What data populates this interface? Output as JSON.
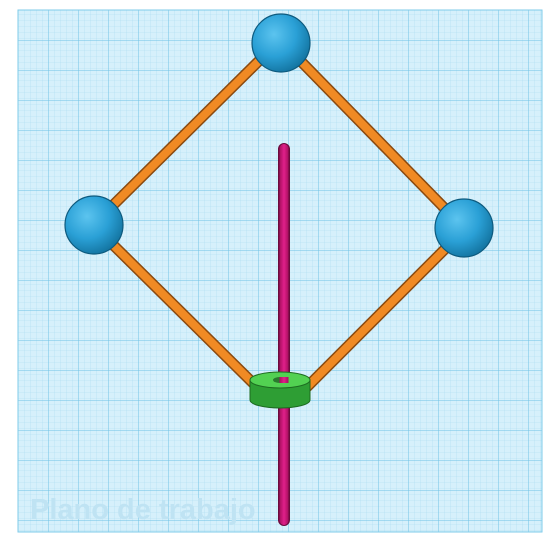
{
  "workplane": {
    "label": "Plano de trabajo",
    "grid_color": "#7fcbea",
    "background_color": "#cfeefb"
  },
  "model": {
    "sphere_color": "#2aa0d6",
    "strut_color": "#f08a24",
    "rod_color": "#d6177d",
    "base_color": "#3fbf3f"
  }
}
